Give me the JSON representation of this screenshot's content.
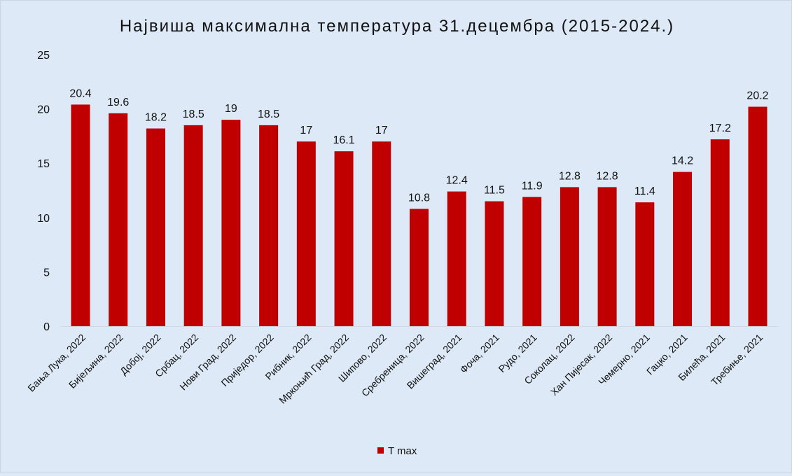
{
  "chart_data": {
    "type": "bar",
    "title": "Највиша максимална температура 31.децембра (2015-2024.)",
    "xlabel": "",
    "ylabel": "",
    "ylim": [
      0,
      25
    ],
    "yticks": [
      0,
      5,
      10,
      15,
      20,
      25
    ],
    "grid": false,
    "legend_position": "bottom",
    "categories": [
      "Бања Лука, 2022",
      "Бијељина, 2022",
      "Добој, 2022",
      "Србац, 2022",
      "Нови Град, 2022",
      "Приједор, 2022",
      "Рибник, 2022",
      "Мркоњић Град, 2022",
      "Шипово, 2022",
      "Сребреница, 2022",
      "Вишеград, 2021",
      "Фоча, 2021",
      "Рудо, 2021",
      "Соколац, 2022",
      "Хан Пијесак, 2022",
      "Чемерно, 2021",
      "Гацко, 2021",
      "Билећа, 2021",
      "Требиње, 2021"
    ],
    "series": [
      {
        "name": "T max",
        "color": "#c00000",
        "values": [
          20.4,
          19.6,
          18.2,
          18.5,
          19,
          18.5,
          17,
          16.1,
          17,
          10.8,
          12.4,
          11.5,
          11.9,
          12.8,
          12.8,
          11.4,
          14.2,
          17.2,
          20.2
        ]
      }
    ]
  }
}
